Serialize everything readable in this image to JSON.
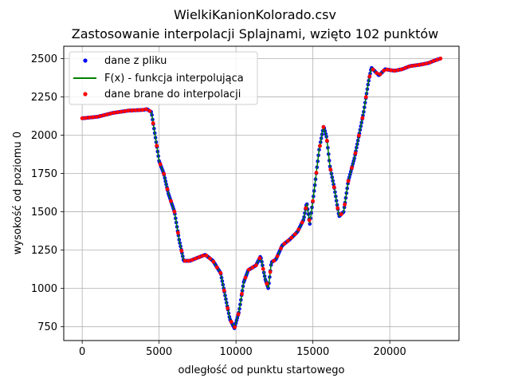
{
  "chart_data": {
    "type": "line",
    "title_line1": "WielkiKanionKolorado.csv",
    "title_line2": "Zastosowanie interpolacji Splajnami, wzięto 102 punktów",
    "xlabel": "odległość od punktu startowego",
    "ylabel": "wysokość od poziomu 0",
    "xlim": [
      -1200,
      24500
    ],
    "ylim": [
      660,
      2580
    ],
    "xticks": [
      0,
      5000,
      10000,
      15000,
      20000
    ],
    "xtick_labels": [
      "0",
      "5000",
      "10000",
      "15000",
      "20000"
    ],
    "yticks": [
      750,
      1000,
      1250,
      1500,
      1750,
      2000,
      2250,
      2500
    ],
    "ytick_labels": [
      "750",
      "1000",
      "1250",
      "1500",
      "1750",
      "2000",
      "2250",
      "2500"
    ],
    "grid": true,
    "legend_position": "top-left",
    "series": [
      {
        "name": "dane z pliku",
        "style": "dots",
        "color": "#0000ff",
        "profile": [
          [
            0,
            2110
          ],
          [
            1000,
            2120
          ],
          [
            2000,
            2145
          ],
          [
            3000,
            2160
          ],
          [
            4000,
            2165
          ],
          [
            4200,
            2170
          ],
          [
            4500,
            2150
          ],
          [
            4800,
            1960
          ],
          [
            5000,
            1830
          ],
          [
            5300,
            1750
          ],
          [
            5600,
            1620
          ],
          [
            6000,
            1500
          ],
          [
            6300,
            1320
          ],
          [
            6600,
            1180
          ],
          [
            7000,
            1180
          ],
          [
            7500,
            1200
          ],
          [
            8000,
            1220
          ],
          [
            8500,
            1180
          ],
          [
            9000,
            1100
          ],
          [
            9300,
            950
          ],
          [
            9600,
            800
          ],
          [
            9900,
            740
          ],
          [
            10200,
            850
          ],
          [
            10500,
            1040
          ],
          [
            10800,
            1120
          ],
          [
            11300,
            1150
          ],
          [
            11600,
            1210
          ],
          [
            11900,
            1060
          ],
          [
            12100,
            1000
          ],
          [
            12300,
            1170
          ],
          [
            12600,
            1190
          ],
          [
            13000,
            1280
          ],
          [
            13500,
            1320
          ],
          [
            14000,
            1370
          ],
          [
            14400,
            1450
          ],
          [
            14600,
            1560
          ],
          [
            14800,
            1420
          ],
          [
            15100,
            1650
          ],
          [
            15400,
            1900
          ],
          [
            15700,
            2060
          ],
          [
            15900,
            1980
          ],
          [
            16100,
            1800
          ],
          [
            16400,
            1650
          ],
          [
            16700,
            1470
          ],
          [
            17000,
            1500
          ],
          [
            17300,
            1700
          ],
          [
            17700,
            1850
          ],
          [
            18000,
            2000
          ],
          [
            18300,
            2150
          ],
          [
            18600,
            2340
          ],
          [
            18800,
            2440
          ],
          [
            19300,
            2390
          ],
          [
            19700,
            2430
          ],
          [
            20300,
            2420
          ],
          [
            20800,
            2430
          ],
          [
            21300,
            2450
          ],
          [
            22000,
            2460
          ],
          [
            22500,
            2470
          ],
          [
            23000,
            2490
          ],
          [
            23300,
            2500
          ]
        ]
      },
      {
        "name": "F(x) - funkcja interpolująca",
        "style": "line",
        "color": "#008000"
      },
      {
        "name": "dane brane do interpolacji",
        "style": "dots",
        "color": "#ff0000",
        "count": 102
      }
    ]
  }
}
